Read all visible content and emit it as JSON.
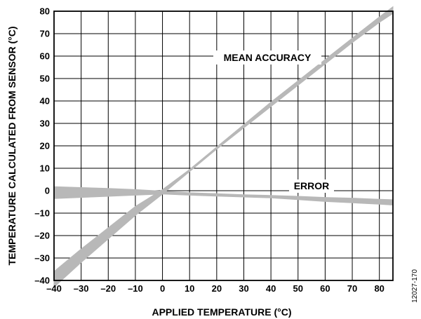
{
  "chart_data": {
    "type": "area",
    "xlabel": "APPLIED TEMPERATURE (°C)",
    "ylabel": "TEMPERATURE CALCULATED FROM SENSOR (°C)",
    "xlim": [
      -40,
      85
    ],
    "ylim": [
      -40,
      80
    ],
    "x_ticks": [
      -40,
      -30,
      -20,
      -10,
      0,
      10,
      20,
      30,
      40,
      50,
      60,
      70,
      80
    ],
    "y_ticks": [
      -40,
      -30,
      -20,
      -10,
      0,
      10,
      20,
      30,
      40,
      50,
      60,
      70,
      80
    ],
    "grid": true,
    "series": [
      {
        "name": "MEAN ACCURACY",
        "color": "#b8b8b8",
        "x": [
          -40,
          -30,
          -20,
          -10,
          0,
          10,
          20,
          30,
          40,
          50,
          60,
          70,
          80,
          85
        ],
        "y_low": [
          -43,
          -32,
          -21.5,
          -11,
          -1.5,
          8.5,
          18.5,
          28,
          37.5,
          47,
          56.5,
          66,
          75,
          79
        ],
        "y_high": [
          -36,
          -26,
          -16.5,
          -7,
          0.5,
          9.5,
          19.5,
          29.5,
          39.5,
          49,
          58.5,
          68,
          77.5,
          82
        ]
      },
      {
        "name": "ERROR",
        "color": "#b8b8b8",
        "x": [
          -40,
          -30,
          -20,
          -10,
          0,
          10,
          20,
          30,
          40,
          50,
          60,
          70,
          80,
          85
        ],
        "y_low": [
          -3.5,
          -3,
          -2.5,
          -2,
          -1.5,
          -2,
          -2.4,
          -2.8,
          -3.2,
          -4,
          -4.8,
          -5.4,
          -6,
          -6.4
        ],
        "y_high": [
          1.8,
          1.4,
          1,
          0.5,
          -0.2,
          -0.9,
          -1.3,
          -1.8,
          -2.1,
          -2.5,
          -3,
          -3.3,
          -3.8,
          -4
        ]
      }
    ],
    "annotations": [
      "MEAN ACCURACY",
      "ERROR"
    ]
  },
  "figure_id": "12027-170"
}
